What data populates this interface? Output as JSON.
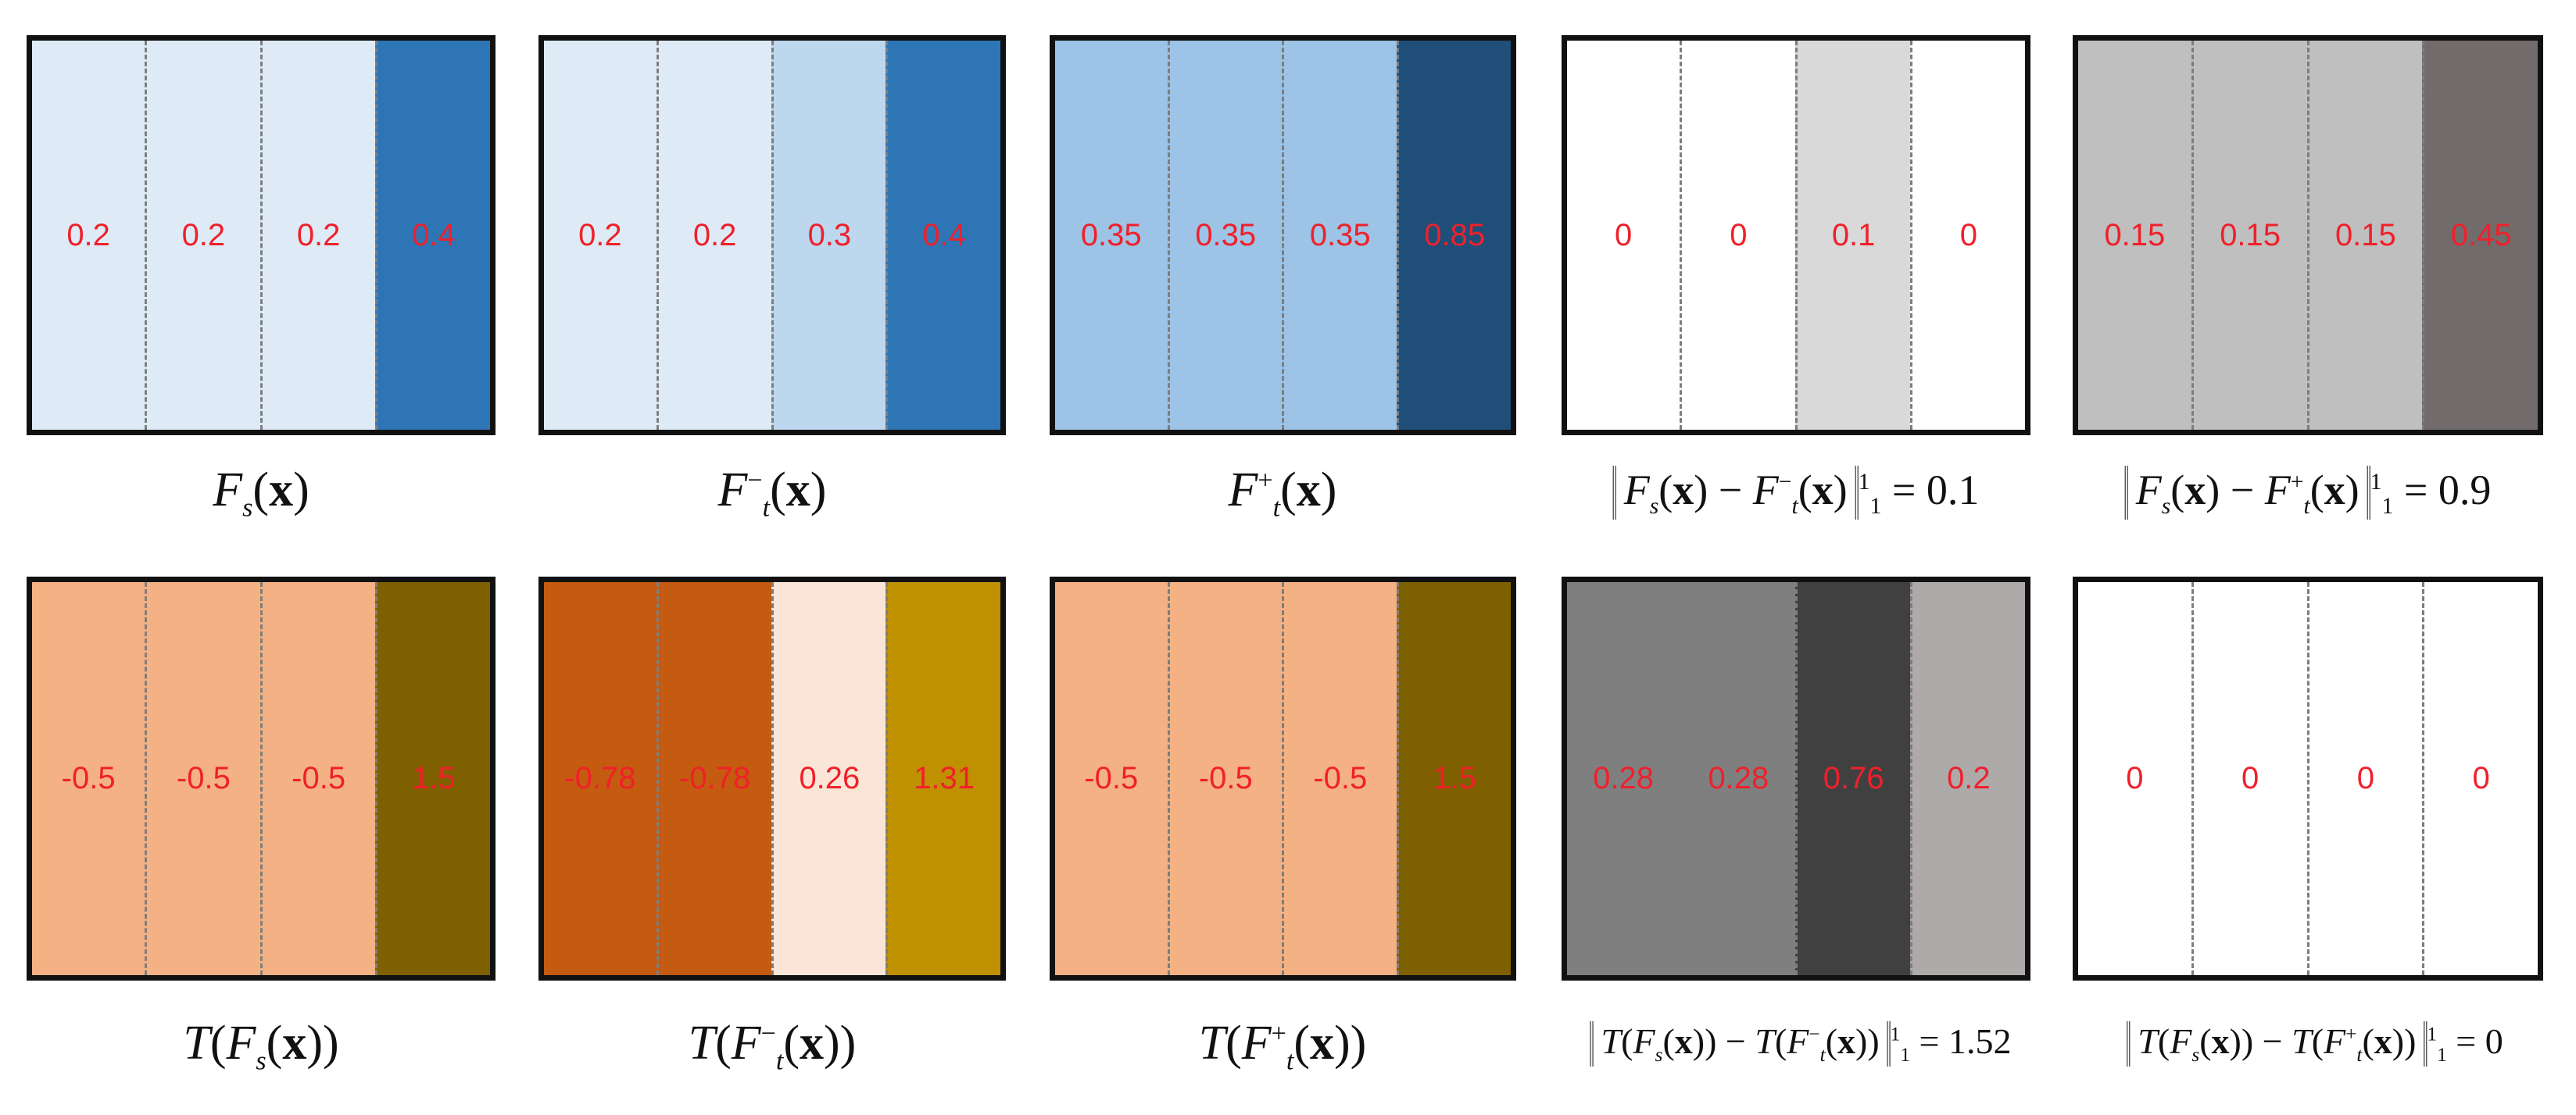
{
  "panels": [
    {
      "id": "fs",
      "values": [
        "0.2",
        "0.2",
        "0.2",
        "0.4"
      ],
      "colors": [
        "#deebf7",
        "#deebf7",
        "#deebf7",
        "#2e75b6"
      ]
    },
    {
      "id": "ft-minus",
      "values": [
        "0.2",
        "0.2",
        "0.3",
        "0.4"
      ],
      "colors": [
        "#deebf7",
        "#deebf7",
        "#bdd7ee",
        "#2e75b6"
      ]
    },
    {
      "id": "ft-plus",
      "values": [
        "0.35",
        "0.35",
        "0.35",
        "0.85"
      ],
      "colors": [
        "#9dc3e6",
        "#9dc3e6",
        "#9dc3e6",
        "#1f4e79"
      ]
    },
    {
      "id": "diff-fs-ftminus",
      "values": [
        "0",
        "0",
        "0.1",
        "0"
      ],
      "colors": [
        "#ffffff",
        "#ffffff",
        "#d9d9d9",
        "#ffffff"
      ]
    },
    {
      "id": "diff-fs-ftplus",
      "values": [
        "0.15",
        "0.15",
        "0.15",
        "0.45"
      ],
      "colors": [
        "#bfbfbf",
        "#bfbfbf",
        "#bfbfbf",
        "#716c6b"
      ]
    },
    {
      "id": "t-fs",
      "values": [
        "-0.5",
        "-0.5",
        "-0.5",
        "1.5"
      ],
      "colors": [
        "#f4b183",
        "#f4b183",
        "#f4b183",
        "#7f6000"
      ]
    },
    {
      "id": "t-ftminus",
      "values": [
        "-0.78",
        "-0.78",
        "0.26",
        "1.31"
      ],
      "colors": [
        "#c55a11",
        "#c55a11",
        "#fbe5d6",
        "#bf9000"
      ]
    },
    {
      "id": "t-ftplus",
      "values": [
        "-0.5",
        "-0.5",
        "-0.5",
        "1.5"
      ],
      "colors": [
        "#f4b183",
        "#f4b183",
        "#f4b183",
        "#7f6000"
      ]
    },
    {
      "id": "diff-t-ftminus",
      "values": [
        "0.28",
        "0.28",
        "0.76",
        "0.2"
      ],
      "colors": [
        "#7f7f7f",
        "#7f7f7f",
        "#404040",
        "#aeaaaa"
      ]
    },
    {
      "id": "diff-t-ftplus",
      "values": [
        "0",
        "0",
        "0",
        "0"
      ],
      "colors": [
        "#ffffff",
        "#ffffff",
        "#ffffff",
        "#ffffff"
      ]
    }
  ],
  "captions": {
    "F": "F",
    "T": "T",
    "s": "s",
    "t": "t",
    "x": "x",
    "minus_sup": "−",
    "plus_sup": "+",
    "minus_op": " − ",
    "eq": " = ",
    "one": "1",
    "norm1_value": "0.1",
    "norm2_value": "0.9",
    "norm3_value": "1.52",
    "norm4_value": "0"
  }
}
